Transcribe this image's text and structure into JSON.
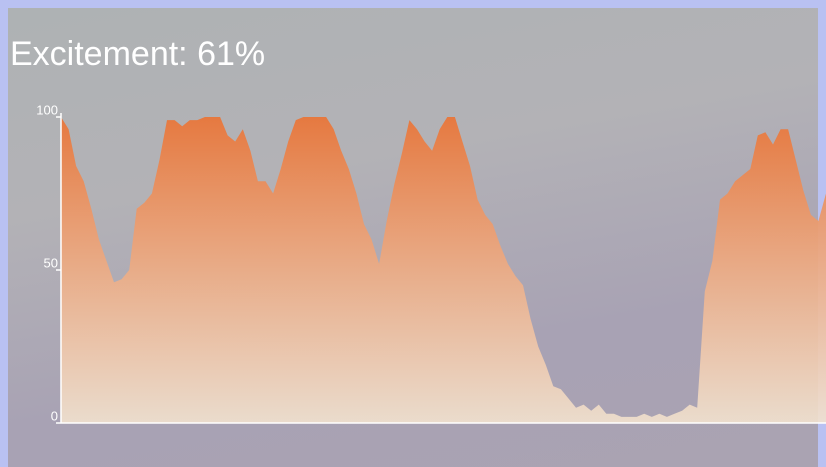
{
  "chart_data": {
    "type": "area",
    "title": "Excitement: 61%",
    "values": [
      100,
      96,
      84,
      79,
      70,
      60,
      53,
      46,
      47,
      50,
      70,
      72,
      75,
      86,
      99,
      99,
      97,
      99,
      99,
      100,
      100,
      100,
      94,
      92,
      96,
      89,
      79,
      79,
      75,
      83,
      92,
      99,
      100,
      100,
      100,
      100,
      96,
      89,
      83,
      75,
      65,
      60,
      52,
      66,
      78,
      88,
      99,
      96,
      92,
      89,
      96,
      100,
      100,
      92,
      84,
      73,
      68,
      65,
      58,
      52,
      48,
      45,
      34,
      25,
      19,
      12,
      11,
      8,
      5,
      6,
      4,
      6,
      3,
      3,
      2,
      2,
      2,
      3,
      2,
      3,
      2,
      3,
      4,
      6,
      5,
      43,
      53,
      73,
      75,
      79,
      81,
      83,
      94,
      95,
      91,
      96,
      96,
      86,
      76,
      68,
      66,
      75
    ],
    "color": "#e8763a",
    "ylim": [
      0,
      100
    ],
    "yticks": [
      0,
      50,
      100
    ]
  }
}
